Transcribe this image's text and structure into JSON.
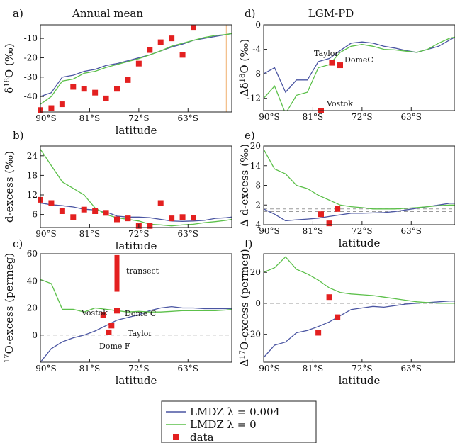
{
  "figure": {
    "colors": {
      "lmdz_1": "#4a55a2",
      "lmdz_0": "#5cc04a",
      "data": "#e32020",
      "zero": "#9a9a9a",
      "marker": "#f0b070"
    },
    "legend": [
      {
        "key": "lmdz_1",
        "label": "LMDZ λ = 0.004",
        "kind": "line"
      },
      {
        "key": "lmdz_0",
        "label": "LMDZ λ = 0",
        "kind": "line"
      },
      {
        "key": "data",
        "label": "data",
        "kind": "square"
      }
    ]
  },
  "chart_data": [
    {
      "panel": "a)",
      "type": "line",
      "title": "Annual mean",
      "ylabel": "δ18O (‰)",
      "xlabel": "latitude",
      "xlim": [
        -90,
        -55
      ],
      "ylim": [
        -48,
        -3
      ],
      "yticks": [
        -10,
        -20,
        -30,
        -40
      ],
      "xticks": [
        -90,
        -81,
        -72,
        -63
      ],
      "xticklabels": [
        "90°S",
        "81°S",
        "72°S",
        "63°S"
      ],
      "series": [
        {
          "key": "lmdz_1",
          "x": [
            -90,
            -88,
            -86,
            -84,
            -82,
            -80,
            -78,
            -76,
            -74,
            -72,
            -70,
            -68,
            -66,
            -64,
            -62,
            -60,
            -58,
            -56,
            -55
          ],
          "y": [
            -40,
            -38,
            -30,
            -29,
            -27,
            -26,
            -24,
            -23,
            -21.5,
            -20,
            -18.5,
            -16.5,
            -14.5,
            -13,
            -11,
            -10,
            -9,
            -8,
            -7.5
          ]
        },
        {
          "key": "lmdz_0",
          "x": [
            -90,
            -88,
            -86,
            -84,
            -82,
            -80,
            -78,
            -76,
            -74,
            -72,
            -70,
            -68,
            -66,
            -64,
            -62,
            -60,
            -58,
            -56,
            -55
          ],
          "y": [
            -44,
            -40,
            -32,
            -31,
            -28,
            -27,
            -25,
            -23.5,
            -22,
            -20.5,
            -18.5,
            -16.5,
            -14,
            -12.5,
            -11,
            -9.5,
            -8.5,
            -8,
            -7.5
          ]
        },
        {
          "key": "data",
          "x": [
            -90,
            -88,
            -86,
            -84,
            -82,
            -80,
            -78,
            -76,
            -74,
            -72,
            -70,
            -68,
            -66,
            -64,
            -62
          ],
          "y": [
            -47,
            -46,
            -44,
            -35,
            -36,
            -38,
            -41,
            -36,
            -31.5,
            -23,
            -16,
            -12,
            -10,
            -18.5,
            -4.5
          ]
        }
      ],
      "vline_x": -56
    },
    {
      "panel": "b)",
      "type": "line",
      "ylabel": "d-excess (‰)",
      "xlabel": "latitude",
      "xlim": [
        -90,
        -55
      ],
      "ylim": [
        2,
        27
      ],
      "yticks": [
        24,
        18,
        12,
        6
      ],
      "xticks": [
        -90,
        -81,
        -72,
        -63
      ],
      "xticklabels": [
        "90°S",
        "81°S",
        "72°S",
        "63°S"
      ],
      "series": [
        {
          "key": "lmdz_1",
          "x": [
            -90,
            -88,
            -86,
            -84,
            -82,
            -80,
            -78,
            -76,
            -74,
            -72,
            -70,
            -68,
            -66,
            -64,
            -62,
            -60,
            -58,
            -56,
            -55
          ],
          "y": [
            9.5,
            9,
            8.7,
            8.3,
            7.6,
            7.4,
            6.8,
            5.5,
            5.2,
            5.2,
            5,
            4.5,
            4,
            3.9,
            4,
            4.2,
            4.8,
            5,
            5.2
          ]
        },
        {
          "key": "lmdz_0",
          "x": [
            -90,
            -88,
            -86,
            -84,
            -82,
            -80,
            -78,
            -76,
            -74,
            -72,
            -70,
            -68,
            -66,
            -64,
            -62,
            -60,
            -58,
            -56,
            -55
          ],
          "y": [
            26,
            21,
            16,
            14,
            12,
            8,
            6,
            5,
            4.5,
            4,
            3,
            2.8,
            2.5,
            2.8,
            3,
            3.5,
            3.8,
            4.2,
            4.5
          ]
        },
        {
          "key": "data",
          "x": [
            -90,
            -88,
            -86,
            -84,
            -82,
            -80,
            -78,
            -76,
            -74,
            -72,
            -70,
            -68,
            -66,
            -64,
            -62
          ],
          "y": [
            10.5,
            9.5,
            7,
            5.2,
            7.5,
            7,
            6.5,
            4.5,
            4.8,
            2.5,
            2.5,
            9.5,
            4.8,
            5.2,
            5
          ]
        }
      ]
    },
    {
      "panel": "c)",
      "type": "line",
      "ylabel": "17O-excess (permeg)",
      "xlabel": "latitude",
      "xlim": [
        -90,
        -55
      ],
      "ylim": [
        -20,
        60
      ],
      "yticks": [
        60,
        40,
        20,
        0
      ],
      "xticks": [
        -90,
        -81,
        -72,
        -63
      ],
      "xticklabels": [
        "90°S",
        "81°S",
        "72°S",
        "63°S"
      ],
      "series": [
        {
          "key": "lmdz_1",
          "x": [
            -90,
            -88,
            -86,
            -84,
            -82,
            -80,
            -78,
            -76,
            -74,
            -72,
            -70,
            -68,
            -66,
            -64,
            -62,
            -60,
            -58,
            -56,
            -55
          ],
          "y": [
            -20,
            -10,
            -5,
            -2,
            0,
            3,
            7,
            11,
            13,
            15,
            18,
            20,
            21,
            20,
            20,
            19.5,
            19.5,
            19.5,
            19.5
          ]
        },
        {
          "key": "lmdz_0",
          "x": [
            -90,
            -88,
            -86,
            -84,
            -82,
            -80,
            -78,
            -76,
            -74,
            -72,
            -70,
            -68,
            -66,
            -64,
            -62,
            -60,
            -58,
            -56,
            -55
          ],
          "y": [
            41,
            38,
            19,
            19,
            17,
            20,
            19,
            18,
            17,
            17.5,
            17,
            17,
            17.5,
            18,
            18,
            18,
            18,
            18.5,
            19
          ]
        },
        {
          "key": "data",
          "x": [
            -78.5,
            -77,
            -77.5,
            -76
          ],
          "y": [
            15,
            7,
            2,
            18
          ]
        }
      ],
      "annotations": [
        "transect",
        "Vostok",
        "Dome C",
        "Taylor",
        "Dome F"
      ],
      "transect": {
        "x": -76,
        "y0": 32,
        "y1": 59
      }
    },
    {
      "panel": "d)",
      "type": "line",
      "title": "LGM-PD",
      "ylabel": "Δδ18O (‰)",
      "xlabel": "",
      "xlim": [
        -90,
        -55
      ],
      "ylim": [
        -14,
        0
      ],
      "yticks": [
        0,
        -4,
        -8,
        -12
      ],
      "xticks": [
        -90,
        -81,
        -72,
        -63
      ],
      "xticklabels": [
        "90°S",
        "81°S",
        "72°S",
        "63°S"
      ],
      "series": [
        {
          "key": "lmdz_1",
          "x": [
            -90,
            -88,
            -86,
            -84,
            -82,
            -80,
            -78,
            -76,
            -74,
            -72,
            -70,
            -68,
            -66,
            -64,
            -62,
            -60,
            -58,
            -56,
            -55
          ],
          "y": [
            -8,
            -7,
            -11,
            -9,
            -9,
            -6,
            -5.5,
            -4.2,
            -3,
            -2.8,
            -3,
            -3.5,
            -3.8,
            -4.2,
            -4.5,
            -4,
            -3.5,
            -2.5,
            -2
          ]
        },
        {
          "key": "lmdz_0",
          "x": [
            -90,
            -88,
            -86,
            -84,
            -82,
            -80,
            -78,
            -76,
            -74,
            -72,
            -70,
            -68,
            -66,
            -64,
            -62,
            -60,
            -58,
            -56,
            -55
          ],
          "y": [
            -12,
            -10,
            -14.5,
            -11.5,
            -11,
            -7,
            -6.5,
            -4.5,
            -3.5,
            -3.2,
            -3.5,
            -4,
            -4.1,
            -4.3,
            -4.5,
            -4,
            -3,
            -2.2,
            -2
          ]
        },
        {
          "key": "data",
          "x": [
            -79.5,
            -77.5,
            -76
          ],
          "y": [
            -14,
            -6.2,
            -6.6
          ]
        }
      ],
      "annotations": [
        "Taylor",
        "DomeC",
        "Vostok"
      ]
    },
    {
      "panel": "e)",
      "type": "line",
      "ylabel": "Δ d-excess (‰)",
      "xlabel": "latitude",
      "xlim": [
        -90,
        -55
      ],
      "ylim": [
        -4,
        20
      ],
      "yticks": [
        20,
        14,
        8,
        2,
        -4
      ],
      "xticks": [
        -90,
        -81,
        -72,
        -63
      ],
      "xticklabels": [
        "90°S",
        "81°S",
        "72°S",
        "63°S"
      ],
      "series": [
        {
          "key": "lmdz_1",
          "x": [
            -90,
            -88,
            -86,
            -84,
            -82,
            -80,
            -78,
            -76,
            -74,
            -72,
            -70,
            -68,
            -66,
            -64,
            -62,
            -60,
            -58,
            -56,
            -55
          ],
          "y": [
            0.8,
            -0.8,
            -2.8,
            -2.5,
            -2.3,
            -2,
            -1.5,
            -1,
            -0.5,
            -0.5,
            -0.4,
            -0.3,
            0,
            0.5,
            1,
            1.5,
            2,
            2.5,
            2.5
          ]
        },
        {
          "key": "lmdz_0",
          "x": [
            -90,
            -88,
            -86,
            -84,
            -82,
            -80,
            -78,
            -76,
            -74,
            -72,
            -70,
            -68,
            -66,
            -64,
            -62,
            -60,
            -58,
            -56,
            -55
          ],
          "y": [
            19,
            13,
            11.5,
            8,
            7,
            5,
            3.5,
            2,
            1.5,
            1.2,
            0.8,
            0.8,
            0.8,
            1,
            1.2,
            1.5,
            1.8,
            2,
            2
          ]
        },
        {
          "key": "data",
          "x": [
            -79.5,
            -78,
            -76.5
          ],
          "y": [
            -0.8,
            -3.6,
            0.8
          ]
        }
      ]
    },
    {
      "panel": "f)",
      "type": "line",
      "ylabel": "Δ17O-excess (permeg)",
      "xlabel": "latitude",
      "xlim": [
        -90,
        -55
      ],
      "ylim": [
        -38,
        32
      ],
      "yticks": [
        20,
        0,
        -20
      ],
      "xticks": [
        -90,
        -81,
        -72,
        -63
      ],
      "xticklabels": [
        "90°S",
        "81°S",
        "72°S",
        "63°S"
      ],
      "series": [
        {
          "key": "lmdz_1",
          "x": [
            -90,
            -88,
            -86,
            -84,
            -82,
            -80,
            -78,
            -76,
            -74,
            -72,
            -70,
            -68,
            -66,
            -64,
            -62,
            -60,
            -58,
            -56,
            -55
          ],
          "y": [
            -35,
            -27,
            -25,
            -19,
            -17.5,
            -15,
            -12,
            -8,
            -4,
            -3,
            -2,
            -2.5,
            -1.5,
            -0.5,
            0,
            0.5,
            1,
            1.5,
            1.5
          ]
        },
        {
          "key": "lmdz_0",
          "x": [
            -90,
            -88,
            -86,
            -84,
            -82,
            -80,
            -78,
            -76,
            -74,
            -72,
            -70,
            -68,
            -66,
            -64,
            -62,
            -60,
            -58,
            -56,
            -55
          ],
          "y": [
            20,
            23,
            30,
            22,
            19,
            15,
            10,
            7,
            6,
            5.5,
            5,
            4,
            3,
            2,
            1,
            0.5,
            0,
            0,
            0
          ]
        },
        {
          "key": "data",
          "x": [
            -80,
            -78,
            -76.5
          ],
          "y": [
            -19,
            4,
            -9
          ]
        }
      ]
    }
  ]
}
